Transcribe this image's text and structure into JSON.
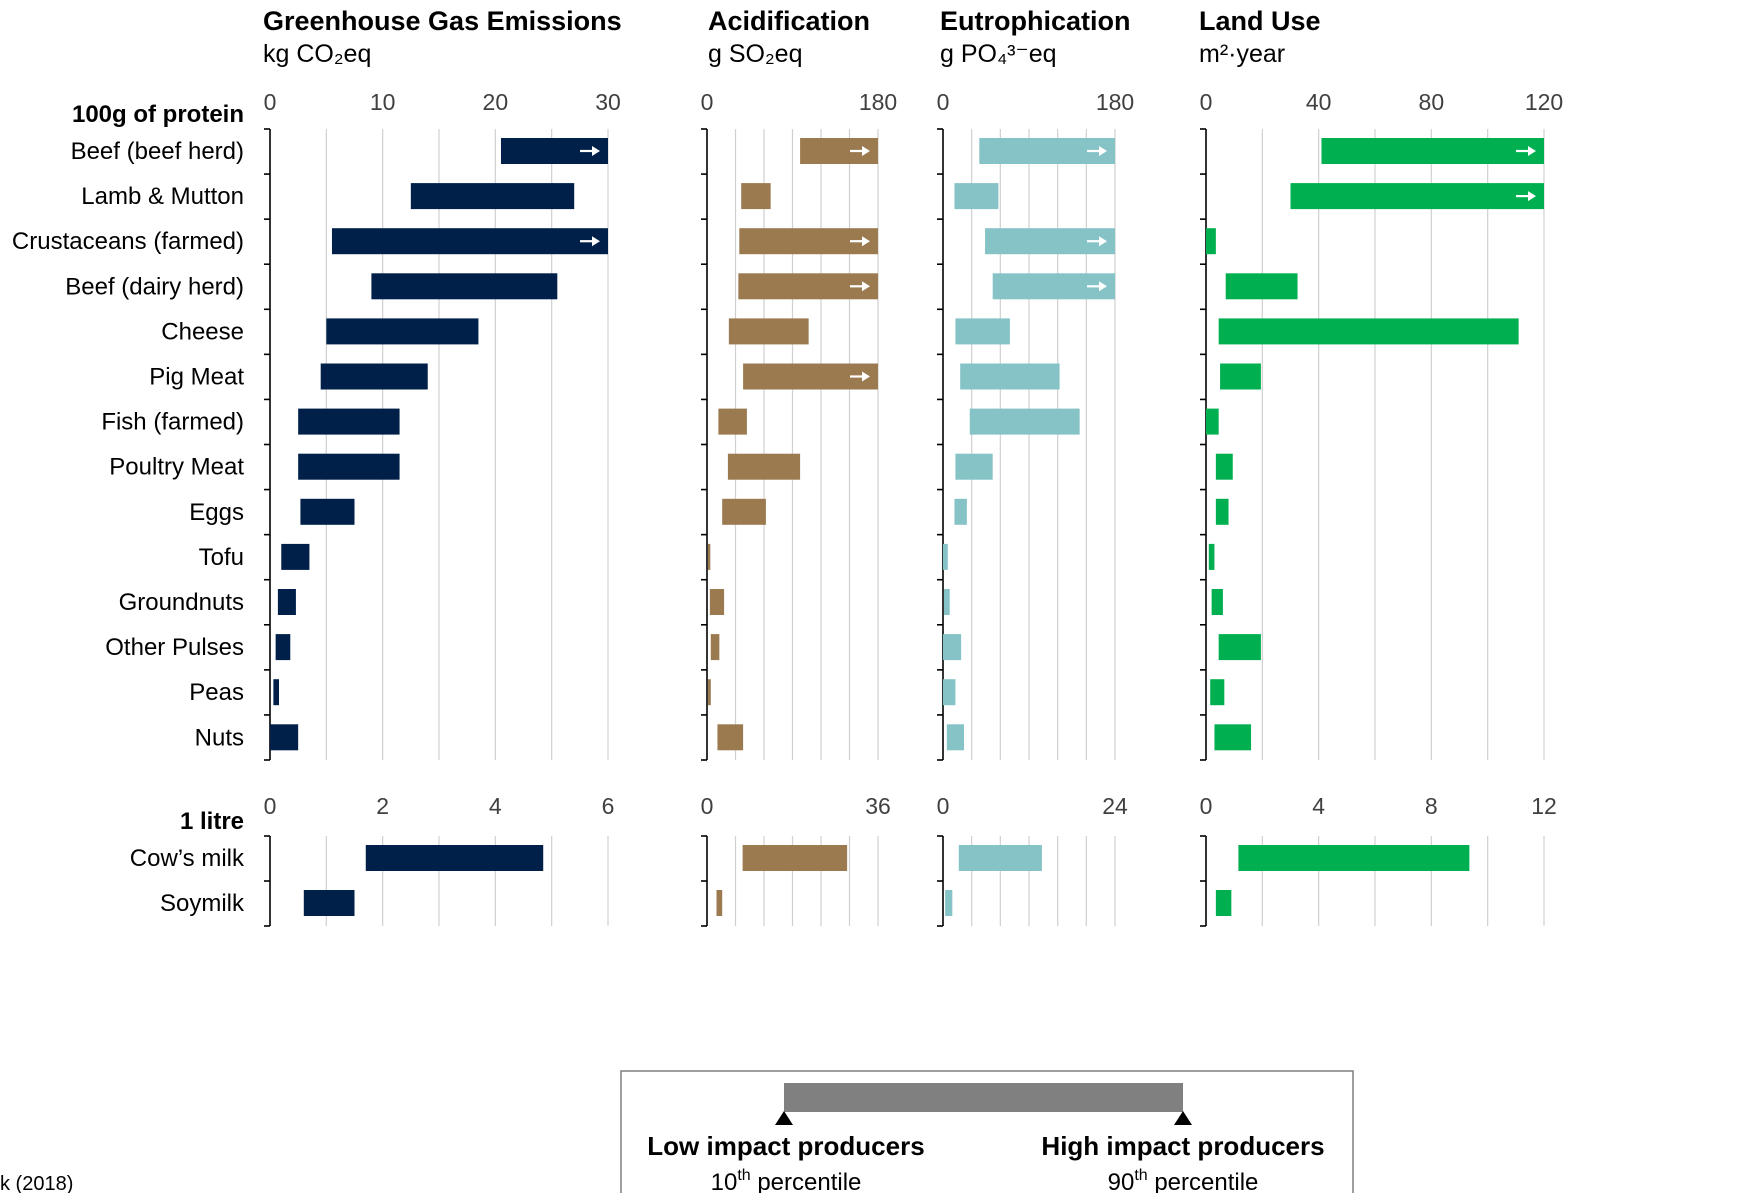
{
  "chart_data": {
    "type": "bar",
    "colors": {
      "Greenhouse Gas Emissions": "#00204a",
      "Acidification": "#9b7a50",
      "Eutrophication": "#85c3c7",
      "Land Use": "#00b050",
      "legend_bar": "#808080",
      "gridline": "#d0d0d0"
    },
    "panels": [
      {
        "key": "ghg",
        "title": "Greenhouse Gas Emissions",
        "unit": "kg CO₂eq",
        "groups": [
          {
            "ticks": [
              "0",
              "10",
              "20",
              "30"
            ],
            "xlim": [
              0,
              30
            ]
          },
          {
            "ticks": [
              "0",
              "2",
              "4",
              "6"
            ],
            "xlim": [
              0,
              6
            ]
          }
        ]
      },
      {
        "key": "acid",
        "title": "Acidification",
        "unit": "g SO₂eq",
        "groups": [
          {
            "ticks": [
              "0",
              "180"
            ],
            "xlim": [
              0,
              180
            ]
          },
          {
            "ticks": [
              "0",
              "36"
            ],
            "xlim": [
              0,
              36
            ]
          }
        ]
      },
      {
        "key": "eutro",
        "title": "Eutrophication",
        "unit": "g PO₄³⁻eq",
        "groups": [
          {
            "ticks": [
              "0",
              "180"
            ],
            "xlim": [
              0,
              180
            ]
          },
          {
            "ticks": [
              "0",
              "24"
            ],
            "xlim": [
              0,
              24
            ]
          }
        ]
      },
      {
        "key": "land",
        "title": "Land Use",
        "unit": "m²·year",
        "groups": [
          {
            "ticks": [
              "0",
              "40",
              "80",
              "120"
            ],
            "xlim": [
              0,
              120
            ]
          },
          {
            "ticks": [
              "0",
              "4",
              "8",
              "12"
            ],
            "xlim": [
              0,
              12
            ]
          }
        ]
      }
    ],
    "groups": [
      {
        "label": "100g of protein",
        "rows": [
          {
            "name": "Beef (beef herd)",
            "ghg": [
              20.5,
              30,
              true
            ],
            "acid": [
              98,
              180,
              true
            ],
            "eutro": [
              38,
              180,
              true
            ],
            "land": [
              41,
              120,
              true
            ]
          },
          {
            "name": "Lamb & Mutton",
            "ghg": [
              12.5,
              27
            ],
            "acid": [
              36,
              67
            ],
            "eutro": [
              12,
              58
            ],
            "land": [
              30,
              120,
              true
            ]
          },
          {
            "name": "Crustaceans (farmed)",
            "ghg": [
              5.5,
              30,
              true
            ],
            "acid": [
              34,
              180,
              true
            ],
            "eutro": [
              44,
              180,
              true
            ],
            "land": [
              0,
              3.5
            ]
          },
          {
            "name": "Beef (dairy herd)",
            "ghg": [
              9,
              25.5
            ],
            "acid": [
              33,
              180,
              true
            ],
            "eutro": [
              52,
              180,
              true
            ],
            "land": [
              7,
              32.5
            ]
          },
          {
            "name": "Cheese",
            "ghg": [
              5,
              18.5
            ],
            "acid": [
              23,
              107
            ],
            "eutro": [
              13,
              70
            ],
            "land": [
              4.5,
              111
            ]
          },
          {
            "name": "Pig Meat",
            "ghg": [
              4.5,
              14
            ],
            "acid": [
              38,
              180,
              true
            ],
            "eutro": [
              18,
              122
            ],
            "land": [
              5,
              19.5
            ]
          },
          {
            "name": "Fish (farmed)",
            "ghg": [
              2.5,
              11.5
            ],
            "acid": [
              12,
              42
            ],
            "eutro": [
              28,
              143
            ],
            "land": [
              0,
              4.5
            ]
          },
          {
            "name": "Poultry Meat",
            "ghg": [
              2.5,
              11.5
            ],
            "acid": [
              22,
              98
            ],
            "eutro": [
              13,
              52
            ],
            "land": [
              3.5,
              9.5
            ]
          },
          {
            "name": "Eggs",
            "ghg": [
              2.7,
              7.5
            ],
            "acid": [
              16,
              62
            ],
            "eutro": [
              12,
              25
            ],
            "land": [
              3.5,
              8
            ]
          },
          {
            "name": "Tofu",
            "ghg": [
              1,
              3.5
            ],
            "acid": [
              1,
              3.5
            ],
            "eutro": [
              0,
              5
            ],
            "land": [
              1,
              3
            ]
          },
          {
            "name": "Groundnuts",
            "ghg": [
              0.7,
              2.3
            ],
            "acid": [
              3,
              18
            ],
            "eutro": [
              1,
              7
            ],
            "land": [
              2,
              6
            ]
          },
          {
            "name": "Other Pulses",
            "ghg": [
              0.5,
              1.8
            ],
            "acid": [
              4,
              13
            ],
            "eutro": [
              0,
              19
            ],
            "land": [
              4.5,
              19.5
            ]
          },
          {
            "name": "Peas",
            "ghg": [
              0.3,
              0.8
            ],
            "acid": [
              1,
              4
            ],
            "eutro": [
              0,
              13
            ],
            "land": [
              1.5,
              6.5
            ]
          },
          {
            "name": "Nuts",
            "ghg": [
              0,
              2.5
            ],
            "acid": [
              11,
              38
            ],
            "eutro": [
              4,
              22
            ],
            "land": [
              3,
              16
            ]
          }
        ]
      },
      {
        "label": "1 litre",
        "rows": [
          {
            "name": "Cow’s milk",
            "ghg": [
              1.7,
              4.85
            ],
            "acid": [
              7.5,
              29.5
            ],
            "eutro": [
              2.2,
              13.8
            ],
            "land": [
              1.15,
              9.35
            ]
          },
          {
            "name": "Soymilk",
            "ghg": [
              0.6,
              1.5
            ],
            "acid": [
              2.0,
              3.2
            ],
            "eutro": [
              0.3,
              1.3
            ],
            "land": [
              0.35,
              0.9
            ]
          }
        ]
      }
    ],
    "legend": {
      "low_label": "Low impact producers",
      "low_percentile": "10",
      "high_label": "High impact producers",
      "high_percentile": "90",
      "percentile_suffix": "th",
      "percentile_word": " percentile"
    },
    "source_fragment": "k (2018)"
  }
}
